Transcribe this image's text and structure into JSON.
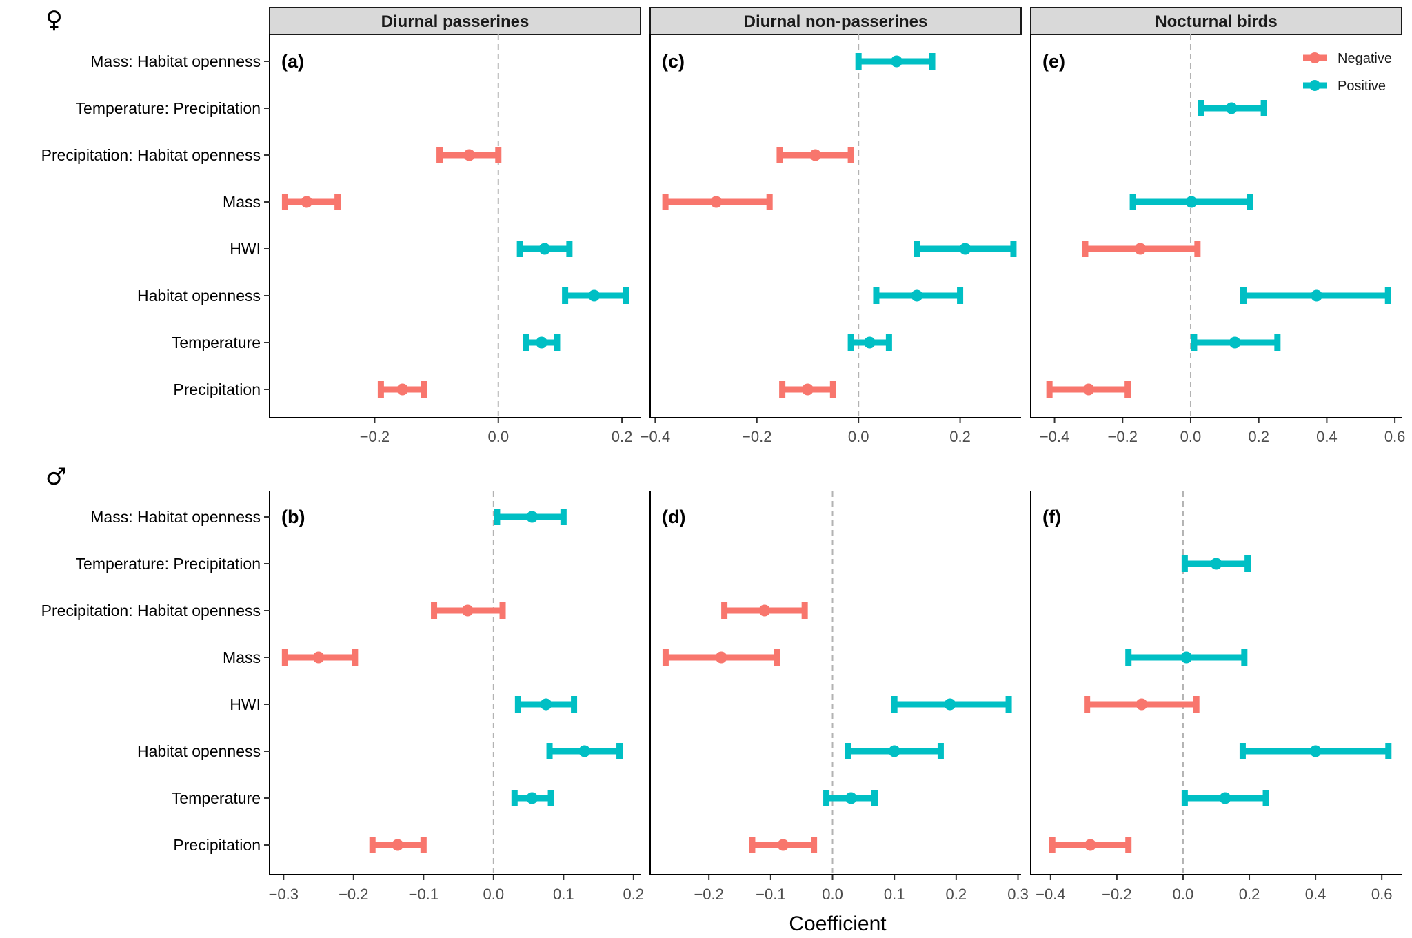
{
  "figure": {
    "female_symbol": "♀",
    "male_symbol": "♂",
    "x_axis_title": "Coefficient",
    "colors": {
      "Negative": "#F8766D",
      "Positive": "#00BFC4"
    },
    "legend": [
      "Negative",
      "Positive"
    ]
  },
  "chart_data": {
    "type": "forest",
    "row_labels": [
      "Mass: Habitat openness",
      "Temperature: Precipitation",
      "Precipitation: Habitat openness",
      "Mass",
      "HWI",
      "Habitat openness",
      "Temperature",
      "Precipitation"
    ],
    "columns": [
      "Diurnal passerines",
      "Diurnal non-passerines",
      "Nocturnal birds"
    ],
    "panels": [
      {
        "tag": "(a)",
        "sex": "female",
        "group": "Diurnal passerines",
        "xlim": [
          -0.37,
          0.23
        ],
        "ticks": [
          {
            "v": -0.2,
            "label": "−0.2"
          },
          {
            "v": 0.0,
            "label": "0.0"
          },
          {
            "v": 0.2,
            "label": "0.2"
          }
        ],
        "points": [
          {
            "term": "Precipitation: Habitat openness",
            "est": -0.047,
            "lo": -0.095,
            "hi": 0.0,
            "sign": "Negative"
          },
          {
            "term": "Mass",
            "est": -0.31,
            "lo": -0.345,
            "hi": -0.26,
            "sign": "Negative"
          },
          {
            "term": "HWI",
            "est": 0.075,
            "lo": 0.035,
            "hi": 0.115,
            "sign": "Positive"
          },
          {
            "term": "Habitat openness",
            "est": 0.155,
            "lo": 0.108,
            "hi": 0.207,
            "sign": "Positive"
          },
          {
            "term": "Temperature",
            "est": 0.07,
            "lo": 0.045,
            "hi": 0.095,
            "sign": "Positive"
          },
          {
            "term": "Precipitation",
            "est": -0.155,
            "lo": -0.19,
            "hi": -0.12,
            "sign": "Negative"
          }
        ]
      },
      {
        "tag": "(c)",
        "sex": "female",
        "group": "Diurnal non-passerines",
        "xlim": [
          -0.41,
          0.32
        ],
        "ticks": [
          {
            "v": -0.4,
            "label": "−0.4"
          },
          {
            "v": -0.2,
            "label": "−0.2"
          },
          {
            "v": 0.0,
            "label": "0.0"
          },
          {
            "v": 0.2,
            "label": "0.2"
          }
        ],
        "points": [
          {
            "term": "Mass: Habitat openness",
            "est": 0.075,
            "lo": 0.0,
            "hi": 0.145,
            "sign": "Positive"
          },
          {
            "term": "Precipitation: Habitat openness",
            "est": -0.085,
            "lo": -0.155,
            "hi": -0.015,
            "sign": "Negative"
          },
          {
            "term": "Mass",
            "est": -0.28,
            "lo": -0.38,
            "hi": -0.175,
            "sign": "Negative"
          },
          {
            "term": "HWI",
            "est": 0.21,
            "lo": 0.115,
            "hi": 0.305,
            "sign": "Positive"
          },
          {
            "term": "Habitat openness",
            "est": 0.115,
            "lo": 0.035,
            "hi": 0.2,
            "sign": "Positive"
          },
          {
            "term": "Temperature",
            "est": 0.022,
            "lo": -0.015,
            "hi": 0.06,
            "sign": "Positive"
          },
          {
            "term": "Precipitation",
            "est": -0.1,
            "lo": -0.15,
            "hi": -0.05,
            "sign": "Negative"
          }
        ]
      },
      {
        "tag": "(e)",
        "sex": "female",
        "group": "Nocturnal birds",
        "xlim": [
          -0.47,
          0.62
        ],
        "ticks": [
          {
            "v": -0.4,
            "label": "−0.4"
          },
          {
            "v": -0.2,
            "label": "−0.2"
          },
          {
            "v": 0.0,
            "label": "0.0"
          },
          {
            "v": 0.2,
            "label": "0.2"
          },
          {
            "v": 0.4,
            "label": "0.4"
          },
          {
            "v": 0.6,
            "label": "0.6"
          }
        ],
        "points": [
          {
            "term": "Temperature: Precipitation",
            "est": 0.12,
            "lo": 0.03,
            "hi": 0.215,
            "sign": "Positive"
          },
          {
            "term": "Mass",
            "est": 0.002,
            "lo": -0.17,
            "hi": 0.175,
            "sign": "Positive"
          },
          {
            "term": "HWI",
            "est": -0.148,
            "lo": -0.31,
            "hi": 0.02,
            "sign": "Negative"
          },
          {
            "term": "Habitat openness",
            "est": 0.37,
            "lo": 0.155,
            "hi": 0.58,
            "sign": "Positive"
          },
          {
            "term": "Temperature",
            "est": 0.13,
            "lo": 0.01,
            "hi": 0.255,
            "sign": "Positive"
          },
          {
            "term": "Precipitation",
            "est": -0.3,
            "lo": -0.415,
            "hi": -0.185,
            "sign": "Negative"
          }
        ]
      },
      {
        "tag": "(b)",
        "sex": "male",
        "group": "Diurnal passerines",
        "xlim": [
          -0.32,
          0.21
        ],
        "ticks": [
          {
            "v": -0.3,
            "label": "−0.3"
          },
          {
            "v": -0.2,
            "label": "−0.2"
          },
          {
            "v": -0.1,
            "label": "−0.1"
          },
          {
            "v": 0.0,
            "label": "0.0"
          },
          {
            "v": 0.1,
            "label": "0.1"
          },
          {
            "v": 0.2,
            "label": "0.2"
          }
        ],
        "points": [
          {
            "term": "Mass: Habitat openness",
            "est": 0.055,
            "lo": 0.005,
            "hi": 0.1,
            "sign": "Positive"
          },
          {
            "term": "Precipitation: Habitat openness",
            "est": -0.037,
            "lo": -0.085,
            "hi": 0.013,
            "sign": "Negative"
          },
          {
            "term": "Mass",
            "est": -0.25,
            "lo": -0.298,
            "hi": -0.198,
            "sign": "Negative"
          },
          {
            "term": "HWI",
            "est": 0.075,
            "lo": 0.035,
            "hi": 0.115,
            "sign": "Positive"
          },
          {
            "term": "Habitat openness",
            "est": 0.13,
            "lo": 0.08,
            "hi": 0.18,
            "sign": "Positive"
          },
          {
            "term": "Temperature",
            "est": 0.055,
            "lo": 0.03,
            "hi": 0.082,
            "sign": "Positive"
          },
          {
            "term": "Precipitation",
            "est": -0.137,
            "lo": -0.173,
            "hi": -0.1,
            "sign": "Negative"
          }
        ]
      },
      {
        "tag": "(d)",
        "sex": "male",
        "group": "Diurnal non-passerines",
        "xlim": [
          -0.295,
          0.305
        ],
        "ticks": [
          {
            "v": -0.2,
            "label": "−0.2"
          },
          {
            "v": -0.1,
            "label": "−0.1"
          },
          {
            "v": 0.0,
            "label": "0.0"
          },
          {
            "v": 0.1,
            "label": "0.1"
          },
          {
            "v": 0.2,
            "label": "0.2"
          },
          {
            "v": 0.3,
            "label": "0.3"
          }
        ],
        "points": [
          {
            "term": "Precipitation: Habitat openness",
            "est": -0.11,
            "lo": -0.175,
            "hi": -0.045,
            "sign": "Negative"
          },
          {
            "term": "Mass",
            "est": -0.18,
            "lo": -0.27,
            "hi": -0.09,
            "sign": "Negative"
          },
          {
            "term": "HWI",
            "est": 0.19,
            "lo": 0.1,
            "hi": 0.285,
            "sign": "Positive"
          },
          {
            "term": "Habitat openness",
            "est": 0.1,
            "lo": 0.025,
            "hi": 0.175,
            "sign": "Positive"
          },
          {
            "term": "Temperature",
            "est": 0.03,
            "lo": -0.01,
            "hi": 0.068,
            "sign": "Positive"
          },
          {
            "term": "Precipitation",
            "est": -0.08,
            "lo": -0.13,
            "hi": -0.03,
            "sign": "Negative"
          }
        ]
      },
      {
        "tag": "(f)",
        "sex": "male",
        "group": "Nocturnal birds",
        "xlim": [
          -0.46,
          0.66
        ],
        "ticks": [
          {
            "v": -0.4,
            "label": "−0.4"
          },
          {
            "v": -0.2,
            "label": "−0.2"
          },
          {
            "v": 0.0,
            "label": "0.0"
          },
          {
            "v": 0.2,
            "label": "0.2"
          },
          {
            "v": 0.4,
            "label": "0.4"
          },
          {
            "v": 0.6,
            "label": "0.6"
          }
        ],
        "points": [
          {
            "term": "Temperature: Precipitation",
            "est": 0.1,
            "lo": 0.005,
            "hi": 0.195,
            "sign": "Positive"
          },
          {
            "term": "Mass",
            "est": 0.01,
            "lo": -0.165,
            "hi": 0.185,
            "sign": "Positive"
          },
          {
            "term": "HWI",
            "est": -0.125,
            "lo": -0.29,
            "hi": 0.04,
            "sign": "Negative"
          },
          {
            "term": "Habitat openness",
            "est": 0.4,
            "lo": 0.18,
            "hi": 0.62,
            "sign": "Positive"
          },
          {
            "term": "Temperature",
            "est": 0.127,
            "lo": 0.005,
            "hi": 0.25,
            "sign": "Positive"
          },
          {
            "term": "Precipitation",
            "est": -0.28,
            "lo": -0.395,
            "hi": -0.165,
            "sign": "Negative"
          }
        ]
      }
    ]
  }
}
